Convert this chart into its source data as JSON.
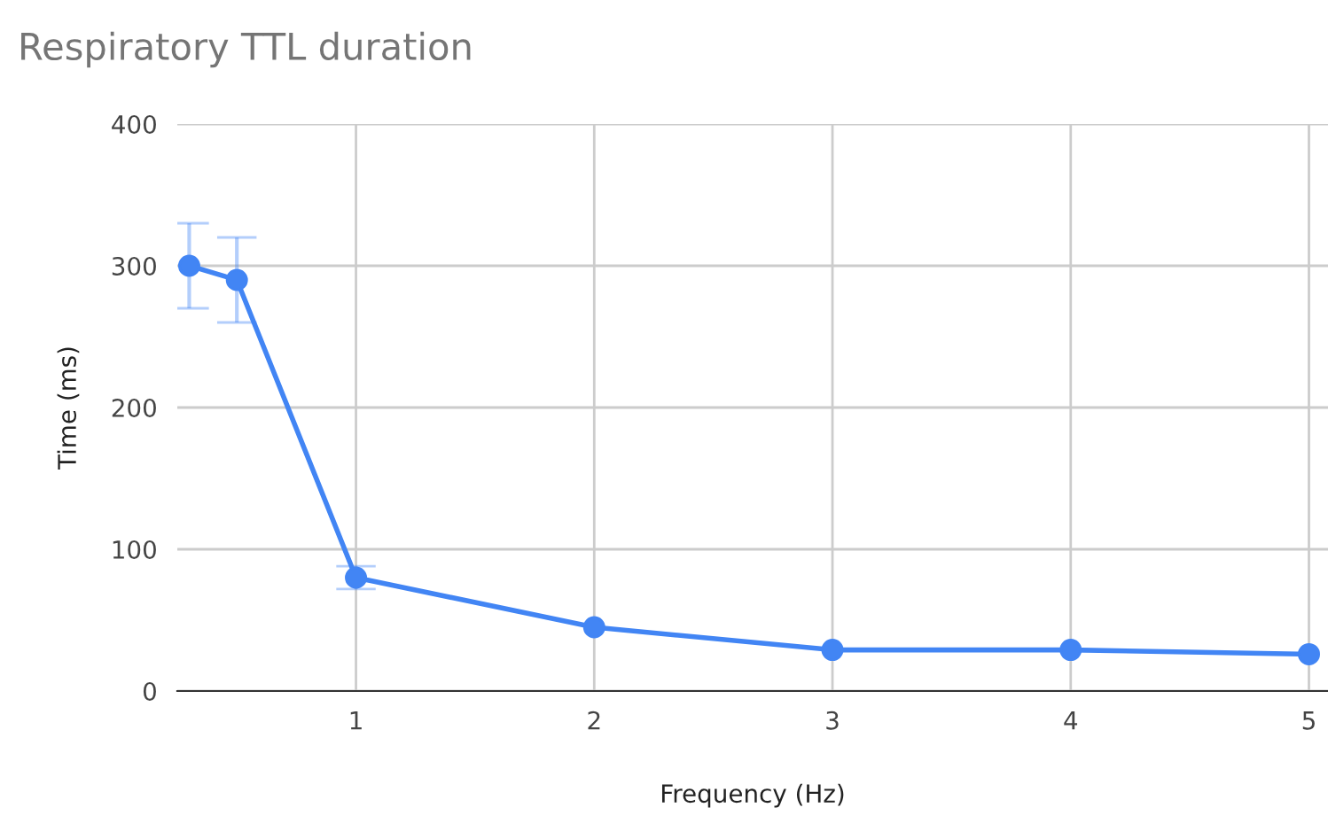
{
  "chart_data": {
    "type": "line",
    "title": "Respiratory TTL duration",
    "xlabel": "Frequency (Hz)",
    "ylabel": "Time (ms)",
    "x": [
      0.3,
      0.5,
      1,
      2,
      3,
      4,
      5
    ],
    "series": [
      {
        "color": "#4285f4",
        "values": [
          300,
          290,
          80,
          45,
          29,
          29,
          26
        ],
        "errors": [
          30,
          30,
          8,
          null,
          null,
          null,
          null
        ]
      }
    ],
    "xlim": [
      0.25,
      5.08
    ],
    "xticks": [
      1,
      2,
      3,
      4,
      5
    ],
    "ylim": [
      0,
      400
    ],
    "yticks": [
      0,
      100,
      200,
      300,
      400
    ],
    "grid": true,
    "marker": "circle",
    "line_style": "solid",
    "legend": false
  }
}
